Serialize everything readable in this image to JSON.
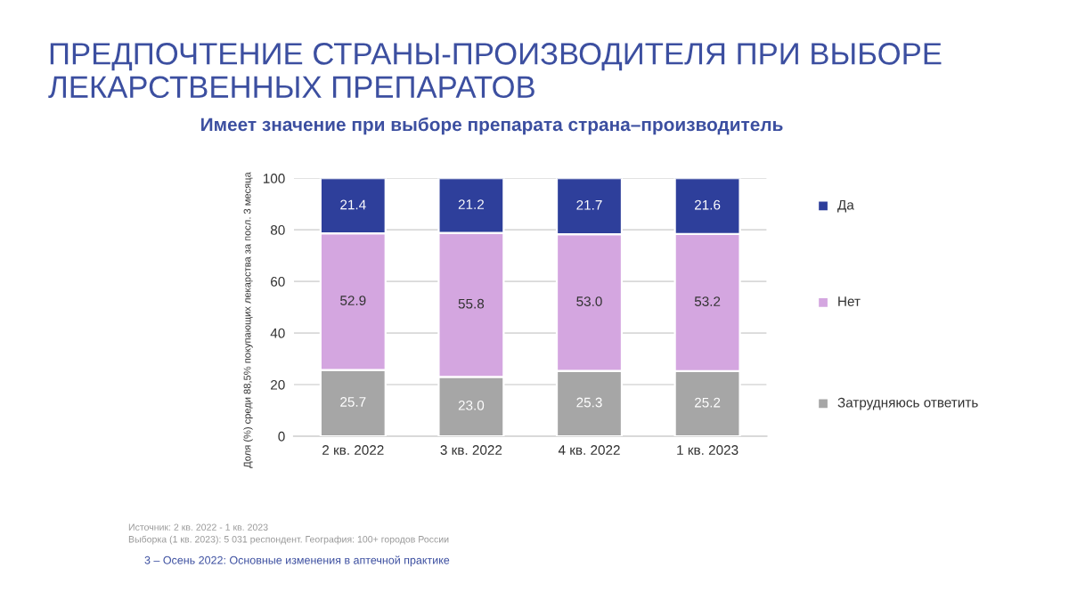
{
  "chart_data": {
    "type": "bar",
    "stacked": true,
    "title": "ПРЕДПОЧТЕНИЕ СТРАНЫ-ПРОИЗВОДИТЕЛЯ ПРИ ВЫБОРЕ ЛЕКАРСТВЕННЫХ ПРЕПАРАТОВ",
    "subtitle": "Имеет значение при выборе препарата страна–производитель",
    "ylabel": "Доля (%) среди 88,5% покупающих лекарства за посл. 3 месяца",
    "categories": [
      "2 кв. 2022",
      "3 кв. 2022",
      "4 кв. 2022",
      "1 кв. 2023"
    ],
    "series": [
      {
        "name": "Затрудняюсь ответить",
        "color": "#a6a6a6",
        "values": [
          25.7,
          23.0,
          25.3,
          25.2
        ],
        "value_labels": [
          "25.7",
          "23.0",
          "25.3",
          "25.2"
        ]
      },
      {
        "name": "Нет",
        "color": "#d4a6e0",
        "values": [
          52.9,
          55.8,
          53.0,
          53.2
        ],
        "value_labels": [
          "52.9",
          "55.8",
          "53.0",
          "53.2"
        ]
      },
      {
        "name": "Да",
        "color": "#2e3f9b",
        "values": [
          21.4,
          21.2,
          21.7,
          21.6
        ],
        "value_labels": [
          "21.4",
          "21.2",
          "21.7",
          "21.6"
        ]
      }
    ],
    "ylim": [
      0,
      100
    ],
    "yticks": [
      0,
      20,
      40,
      60,
      80,
      100
    ],
    "grid": "y",
    "legend": "right",
    "annotations": [
      "Источник: 2 кв. 2022 - 1 кв. 2023",
      "Выборка (1 кв. 2023): 5 031 респондент. География: 100+ городов России",
      "3 – Осень 2022: Основные изменения в аптечной практике"
    ]
  }
}
